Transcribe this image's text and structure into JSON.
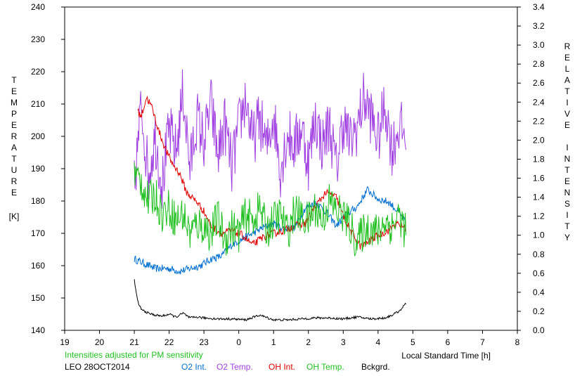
{
  "chart_data": {
    "type": "line",
    "title": "",
    "xlabel": "Local Standard Time [h]",
    "ylabel_left_letters": [
      "T",
      "E",
      "M",
      "P",
      "E",
      "R",
      "A",
      "T",
      "U",
      "R",
      "E"
    ],
    "ylabel_left_unit": "[K]",
    "ylabel_right_letters": [
      "R",
      "E",
      "L",
      "A",
      "T",
      "I",
      "V",
      "E",
      " ",
      "I",
      "N",
      "T",
      "E",
      "N",
      "S",
      "I",
      "T",
      "Y"
    ],
    "x_tick_labels": [
      "19",
      "20",
      "21",
      "22",
      "23",
      "0",
      "1",
      "2",
      "3",
      "4",
      "5",
      "6",
      "7",
      "8"
    ],
    "xlim": [
      19,
      32
    ],
    "ylim_left": [
      140,
      240
    ],
    "ylim_right": [
      0.0,
      3.4
    ],
    "y_left_ticks": [
      "140",
      "150",
      "160",
      "170",
      "180",
      "190",
      "200",
      "210",
      "220",
      "230",
      "240"
    ],
    "y_right_ticks": [
      "0.0",
      "0.2",
      "0.4",
      "0.6",
      "0.8",
      "1.0",
      "1.2",
      "1.4",
      "1.6",
      "1.8",
      "2.0",
      "2.2",
      "2.4",
      "2.6",
      "2.8",
      "3.0",
      "3.2",
      "3.4"
    ],
    "grid": false,
    "note": "Intensities adjusted for PM sensitivity",
    "station_date": "LEO 28OCT2014",
    "series": [
      {
        "name": "O2 Int.",
        "axis": "right",
        "color": "#0070d0",
        "x": [
          21.0,
          21.3,
          21.6,
          22.0,
          22.3,
          22.6,
          22.9,
          23.2,
          23.5,
          23.8,
          24.1,
          24.4,
          24.7,
          25.0,
          25.3,
          25.6,
          25.9,
          26.2,
          26.5,
          26.8,
          27.1,
          27.4,
          27.7,
          28.0,
          28.3,
          28.6,
          28.8
        ],
        "y": [
          0.75,
          0.7,
          0.65,
          0.65,
          0.62,
          0.65,
          0.68,
          0.75,
          0.78,
          0.9,
          0.96,
          1.02,
          1.08,
          1.12,
          1.07,
          1.08,
          1.28,
          1.35,
          1.25,
          1.1,
          1.22,
          1.3,
          1.48,
          1.38,
          1.35,
          1.24,
          1.12
        ]
      },
      {
        "name": "O2 Temp.",
        "axis": "left",
        "color": "#a040e0",
        "x": [
          21.0,
          21.2,
          21.4,
          21.6,
          21.8,
          22.0,
          22.2,
          22.4,
          22.6,
          22.8,
          23.0,
          23.2,
          23.4,
          23.6,
          23.8,
          24.0,
          24.2,
          24.4,
          24.6,
          24.8,
          25.0,
          25.2,
          25.4,
          25.6,
          25.8,
          26.0,
          26.2,
          26.4,
          26.6,
          26.8,
          27.0,
          27.2,
          27.4,
          27.6,
          27.8,
          28.0,
          28.2,
          28.4,
          28.6,
          28.8
        ],
        "y": [
          184,
          210,
          188,
          200,
          185,
          202,
          195,
          214,
          190,
          206,
          198,
          210,
          194,
          204,
          190,
          203,
          212,
          198,
          206,
          196,
          207,
          190,
          201,
          197,
          203,
          192,
          206,
          197,
          204,
          190,
          205,
          198,
          203,
          212,
          206,
          199,
          210,
          196,
          203,
          200
        ]
      },
      {
        "name": "OH Int.",
        "axis": "right",
        "color": "#e00000",
        "x": [
          21.1,
          21.2,
          21.35,
          21.5,
          21.7,
          21.9,
          22.1,
          22.3,
          22.5,
          22.8,
          23.0,
          23.2,
          23.5,
          23.8,
          24.1,
          24.4,
          24.7,
          25.0,
          25.3,
          25.6,
          25.9,
          26.2,
          26.5,
          26.8,
          27.0,
          27.2,
          27.5,
          27.8,
          28.0,
          28.3,
          28.5,
          28.8
        ],
        "y": [
          2.3,
          2.25,
          2.45,
          2.35,
          2.1,
          1.9,
          1.75,
          1.65,
          1.45,
          1.35,
          1.25,
          1.1,
          1.02,
          1.05,
          1.0,
          0.9,
          0.98,
          1.02,
          1.05,
          1.1,
          1.12,
          1.3,
          1.45,
          1.4,
          1.2,
          1.05,
          0.88,
          0.95,
          1.0,
          1.05,
          1.12,
          1.08
        ]
      },
      {
        "name": "OH Temp.",
        "axis": "left",
        "color": "#20c020",
        "x": [
          21.0,
          21.2,
          21.4,
          21.6,
          21.8,
          22.0,
          22.2,
          22.4,
          22.6,
          22.8,
          23.0,
          23.2,
          23.4,
          23.6,
          23.8,
          24.0,
          24.2,
          24.4,
          24.6,
          24.8,
          25.0,
          25.2,
          25.4,
          25.6,
          25.8,
          26.0,
          26.2,
          26.4,
          26.6,
          26.8,
          27.0,
          27.2,
          27.4,
          27.6,
          27.8,
          28.0,
          28.2,
          28.4,
          28.6,
          28.8
        ],
        "y": [
          188,
          186,
          180,
          182,
          176,
          178,
          174,
          176,
          170,
          173,
          172,
          170,
          175,
          168,
          172,
          170,
          176,
          174,
          178,
          171,
          174,
          176,
          170,
          177,
          175,
          174,
          178,
          174,
          180,
          177,
          176,
          172,
          167,
          171,
          172,
          170,
          174,
          172,
          176,
          170
        ]
      },
      {
        "name": "Bckgrd.",
        "axis": "right",
        "color": "#000000",
        "x": [
          21.0,
          21.05,
          21.1,
          21.2,
          21.4,
          21.6,
          21.8,
          22.0,
          22.2,
          22.4,
          22.6,
          22.8,
          23.0,
          23.4,
          23.8,
          24.2,
          24.6,
          25.0,
          25.4,
          25.8,
          26.2,
          26.6,
          27.0,
          27.4,
          27.8,
          28.2,
          28.4,
          28.6,
          28.8
        ],
        "y": [
          0.53,
          0.4,
          0.3,
          0.22,
          0.18,
          0.16,
          0.15,
          0.17,
          0.14,
          0.18,
          0.13,
          0.14,
          0.13,
          0.12,
          0.12,
          0.11,
          0.16,
          0.11,
          0.11,
          0.12,
          0.13,
          0.13,
          0.12,
          0.14,
          0.12,
          0.13,
          0.16,
          0.2,
          0.28
        ]
      }
    ]
  }
}
